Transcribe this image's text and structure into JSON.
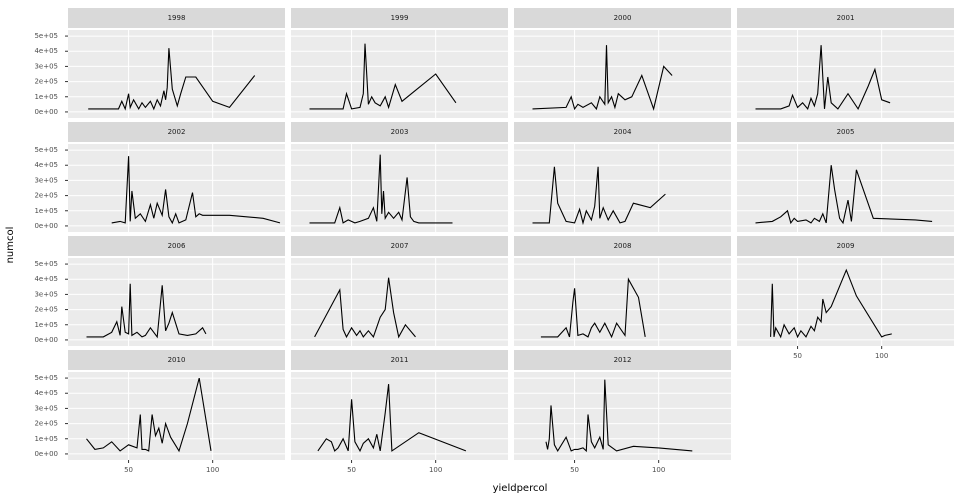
{
  "chart_data": {
    "type": "line",
    "x_label": "yieldpercol",
    "y_label": "numcol",
    "xlim": [
      14,
      143
    ],
    "ylim": [
      -40000,
      540000
    ],
    "xticks": [
      50,
      100
    ],
    "yticks": [
      {
        "value": 0,
        "label": "0e+00"
      },
      {
        "value": 100000,
        "label": "1e+05"
      },
      {
        "value": 200000,
        "label": "2e+05"
      },
      {
        "value": 300000,
        "label": "3e+05"
      },
      {
        "value": 400000,
        "label": "4e+05"
      },
      {
        "value": 500000,
        "label": "5e+05"
      }
    ],
    "color": "#000000",
    "grid": true,
    "facets": [
      {
        "title": "1998",
        "x": [
          26,
          40,
          44,
          46,
          48,
          50,
          51,
          53,
          56,
          58,
          60,
          63,
          65,
          67,
          69,
          71,
          72,
          73,
          74,
          76,
          79,
          81,
          84,
          90,
          100,
          110,
          125
        ],
        "values": [
          20000,
          20000,
          20000,
          70000,
          20000,
          120000,
          30000,
          80000,
          20000,
          60000,
          30000,
          70000,
          20000,
          80000,
          40000,
          140000,
          80000,
          160000,
          420000,
          150000,
          40000,
          120000,
          230000,
          230000,
          70000,
          30000,
          240000
        ]
      },
      {
        "title": "1999",
        "x": [
          25,
          40,
          45,
          47,
          50,
          55,
          57,
          58,
          60,
          62,
          64,
          67,
          70,
          72,
          76,
          80,
          90,
          100,
          112
        ],
        "values": [
          20000,
          20000,
          20000,
          120000,
          20000,
          30000,
          120000,
          450000,
          50000,
          100000,
          60000,
          40000,
          100000,
          30000,
          180000,
          70000,
          160000,
          250000,
          60000
        ]
      },
      {
        "title": "2000",
        "x": [
          25,
          45,
          48,
          50,
          52,
          55,
          60,
          63,
          65,
          68,
          69,
          70,
          72,
          74,
          76,
          80,
          84,
          90,
          97,
          103,
          108
        ],
        "values": [
          20000,
          30000,
          100000,
          20000,
          50000,
          30000,
          60000,
          20000,
          100000,
          50000,
          440000,
          60000,
          100000,
          30000,
          120000,
          80000,
          100000,
          240000,
          20000,
          300000,
          240000
        ]
      },
      {
        "title": "2001",
        "x": [
          25,
          40,
          45,
          47,
          50,
          53,
          56,
          58,
          60,
          62,
          64,
          66,
          68,
          70,
          74,
          80,
          86,
          92,
          96,
          100,
          105
        ],
        "values": [
          20000,
          20000,
          40000,
          110000,
          30000,
          60000,
          20000,
          90000,
          40000,
          120000,
          440000,
          20000,
          230000,
          60000,
          20000,
          120000,
          20000,
          170000,
          280000,
          80000,
          60000
        ]
      },
      {
        "title": "2002",
        "x": [
          40,
          45,
          48,
          50,
          51,
          52,
          54,
          57,
          60,
          63,
          65,
          67,
          70,
          72,
          74,
          76,
          78,
          80,
          84,
          88,
          90,
          92,
          94,
          110,
          130,
          140
        ],
        "values": [
          20000,
          30000,
          20000,
          460000,
          30000,
          230000,
          50000,
          80000,
          30000,
          140000,
          50000,
          150000,
          70000,
          240000,
          60000,
          20000,
          80000,
          20000,
          40000,
          220000,
          60000,
          80000,
          70000,
          70000,
          50000,
          20000
        ]
      },
      {
        "title": "2003",
        "x": [
          25,
          40,
          43,
          45,
          48,
          52,
          55,
          60,
          63,
          65,
          67,
          68,
          69,
          70,
          72,
          75,
          78,
          80,
          83,
          85,
          87,
          90,
          100,
          110
        ],
        "values": [
          20000,
          20000,
          120000,
          20000,
          40000,
          20000,
          30000,
          50000,
          120000,
          30000,
          470000,
          80000,
          230000,
          50000,
          90000,
          50000,
          90000,
          40000,
          320000,
          60000,
          30000,
          20000,
          20000,
          20000
        ]
      },
      {
        "title": "2004",
        "x": [
          25,
          35,
          38,
          40,
          45,
          50,
          53,
          55,
          57,
          60,
          62,
          64,
          65,
          67,
          70,
          73,
          75,
          77,
          80,
          85,
          95,
          104
        ],
        "values": [
          20000,
          20000,
          390000,
          150000,
          30000,
          20000,
          110000,
          20000,
          100000,
          40000,
          130000,
          390000,
          50000,
          120000,
          40000,
          100000,
          60000,
          20000,
          30000,
          150000,
          120000,
          210000
        ]
      },
      {
        "title": "2005",
        "x": [
          25,
          35,
          40,
          44,
          46,
          48,
          50,
          55,
          58,
          60,
          63,
          65,
          67,
          70,
          72,
          75,
          77,
          80,
          82,
          85,
          95,
          120,
          130
        ],
        "values": [
          20000,
          30000,
          60000,
          100000,
          20000,
          50000,
          30000,
          40000,
          20000,
          50000,
          30000,
          80000,
          20000,
          400000,
          240000,
          50000,
          20000,
          170000,
          30000,
          370000,
          50000,
          40000,
          30000
        ]
      },
      {
        "title": "2006",
        "x": [
          25,
          35,
          40,
          43,
          45,
          46,
          48,
          50,
          51,
          52,
          55,
          58,
          60,
          63,
          67,
          70,
          72,
          74,
          76,
          80,
          85,
          90,
          94,
          96
        ],
        "values": [
          20000,
          20000,
          50000,
          120000,
          30000,
          220000,
          50000,
          40000,
          370000,
          30000,
          50000,
          20000,
          30000,
          80000,
          20000,
          360000,
          60000,
          110000,
          180000,
          40000,
          30000,
          40000,
          80000,
          40000
        ]
      },
      {
        "title": "2007",
        "x": [
          28,
          43,
          45,
          47,
          50,
          53,
          55,
          57,
          60,
          63,
          67,
          70,
          72,
          75,
          78,
          82,
          88
        ],
        "values": [
          20000,
          330000,
          70000,
          20000,
          80000,
          30000,
          60000,
          20000,
          60000,
          20000,
          150000,
          200000,
          410000,
          180000,
          20000,
          100000,
          20000
        ]
      },
      {
        "title": "2008",
        "x": [
          30,
          40,
          45,
          47,
          49,
          50,
          52,
          55,
          58,
          60,
          62,
          65,
          68,
          72,
          75,
          80,
          82,
          88,
          92
        ],
        "values": [
          20000,
          20000,
          80000,
          20000,
          250000,
          340000,
          30000,
          40000,
          20000,
          80000,
          110000,
          50000,
          110000,
          20000,
          110000,
          30000,
          400000,
          280000,
          20000
        ]
      },
      {
        "title": "2009",
        "x": [
          34,
          35,
          36,
          37,
          40,
          42,
          45,
          48,
          50,
          52,
          55,
          58,
          60,
          62,
          64,
          65,
          67,
          70,
          79,
          85,
          100,
          102,
          106
        ],
        "values": [
          20000,
          370000,
          20000,
          80000,
          20000,
          100000,
          40000,
          80000,
          20000,
          60000,
          20000,
          90000,
          60000,
          150000,
          120000,
          270000,
          180000,
          220000,
          460000,
          290000,
          20000,
          30000,
          40000
        ]
      },
      {
        "title": "2010",
        "x": [
          25,
          30,
          35,
          40,
          45,
          50,
          55,
          57,
          58,
          60,
          62,
          64,
          66,
          68,
          70,
          72,
          75,
          80,
          85,
          92,
          99
        ],
        "values": [
          100000,
          30000,
          40000,
          80000,
          20000,
          60000,
          40000,
          260000,
          30000,
          30000,
          20000,
          260000,
          120000,
          170000,
          70000,
          200000,
          110000,
          20000,
          200000,
          500000,
          20000
        ]
      },
      {
        "title": "2011",
        "x": [
          30,
          35,
          38,
          40,
          42,
          45,
          48,
          50,
          52,
          55,
          57,
          60,
          63,
          65,
          67,
          70,
          72,
          74,
          90,
          118
        ],
        "values": [
          20000,
          100000,
          80000,
          20000,
          40000,
          100000,
          20000,
          360000,
          80000,
          20000,
          70000,
          100000,
          40000,
          130000,
          20000,
          270000,
          460000,
          20000,
          140000,
          20000
        ]
      },
      {
        "title": "2012",
        "x": [
          33,
          34,
          35,
          36,
          38,
          40,
          45,
          48,
          50,
          52,
          55,
          57,
          58,
          60,
          62,
          65,
          67,
          68,
          70,
          75,
          85,
          100,
          120
        ],
        "values": [
          80000,
          30000,
          100000,
          320000,
          60000,
          20000,
          110000,
          20000,
          30000,
          30000,
          40000,
          20000,
          260000,
          80000,
          40000,
          110000,
          30000,
          490000,
          60000,
          20000,
          50000,
          40000,
          20000
        ]
      }
    ]
  }
}
